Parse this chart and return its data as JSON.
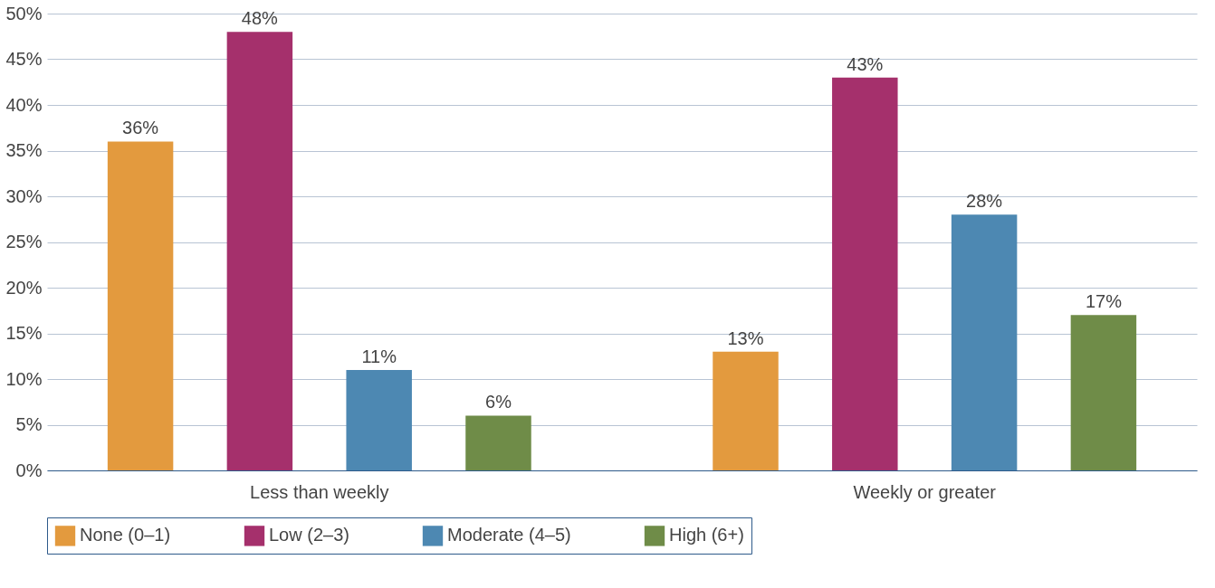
{
  "chart_data": {
    "type": "bar",
    "categories": [
      "Less than weekly",
      "Weekly or greater"
    ],
    "series": [
      {
        "name": "None (0–1)",
        "color": "#e39a3e",
        "values": [
          36,
          13
        ],
        "value_labels": [
          "36%",
          "13%"
        ]
      },
      {
        "name": "Low (2–3)",
        "color": "#a5306c",
        "values": [
          48,
          43
        ],
        "value_labels": [
          "48%",
          "43%"
        ]
      },
      {
        "name": "Moderate (4–5)",
        "color": "#4d88b2",
        "values": [
          11,
          28
        ],
        "value_labels": [
          "11%",
          "28%"
        ]
      },
      {
        "name": "High (6+)",
        "color": "#6f8c48",
        "values": [
          6,
          17
        ],
        "value_labels": [
          "6%",
          "17%"
        ]
      }
    ],
    "ylim": [
      0,
      50
    ],
    "yticks": [
      {
        "value": 0,
        "label": "0%"
      },
      {
        "value": 5,
        "label": "5%"
      },
      {
        "value": 10,
        "label": "10%"
      },
      {
        "value": 15,
        "label": "15%"
      },
      {
        "value": 20,
        "label": "20%"
      },
      {
        "value": 25,
        "label": "25%"
      },
      {
        "value": 30,
        "label": "30%"
      },
      {
        "value": 35,
        "label": "35%"
      },
      {
        "value": 40,
        "label": "40%"
      },
      {
        "value": 45,
        "label": "45%"
      },
      {
        "value": 50,
        "label": "50%"
      }
    ],
    "grid": "y",
    "legend": "bottom"
  }
}
